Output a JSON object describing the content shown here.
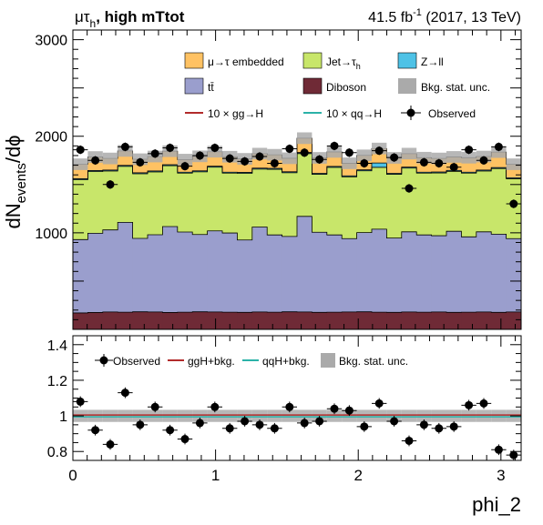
{
  "title": {
    "channel": "μτ",
    "channel_sub": "h",
    "category": ", high mTtot",
    "lumi": "41.5 fb",
    "lumi_exp": "-1",
    "run": " (2017, 13 TeV)"
  },
  "legend": {
    "embedded": "μ→τ embedded",
    "jetfakes": "Jet→τ",
    "jetfakes_sub": "h",
    "zll": "Z→ll",
    "ttbar": "tt̄",
    "diboson": "Diboson",
    "bkg_unc": "Bkg. stat. unc.",
    "sig_gg": "10 × gg→H",
    "sig_qq": "10 × qq→H",
    "observed": "Observed"
  },
  "ratio_legend": {
    "observed": "Observed",
    "ggh": "ggH+bkg.",
    "qqh": "qqH+bkg.",
    "unc": "Bkg. stat. unc."
  },
  "colors": {
    "embedded": "#ffc263",
    "jetfakes": "#c8e66a",
    "zll": "#4ec2e6",
    "ttbar": "#9a9ecd",
    "diboson": "#6f2a36",
    "unc": "#aaaaaa",
    "sig_gg": "#b22b2b",
    "sig_qq": "#2bb2a8"
  },
  "chart_data": [
    {
      "type": "bar",
      "stacked": true,
      "ylabel": "dN",
      "ylabel_sub": "events",
      "ylabel_tail": "/dϕ",
      "xlim": [
        0,
        3.1416
      ],
      "ylim": [
        0,
        3100
      ],
      "y_ticks": [
        1000,
        2000,
        3000
      ],
      "y_tick_labels": [
        "1000",
        "2000",
        "3000"
      ],
      "bins": 30,
      "series": [
        {
          "key": "diboson",
          "name": "Diboson",
          "values": [
            170,
            175,
            180,
            178,
            182,
            180,
            175,
            178,
            182,
            180,
            178,
            176,
            180,
            178,
            182,
            180,
            176,
            178,
            180,
            182,
            178,
            176,
            180,
            178,
            180,
            176,
            178,
            180,
            176,
            180
          ]
        },
        {
          "key": "ttbar",
          "name": "tt̄",
          "values": [
            760,
            820,
            850,
            930,
            760,
            800,
            890,
            830,
            800,
            840,
            820,
            750,
            880,
            800,
            780,
            990,
            830,
            800,
            760,
            820,
            860,
            770,
            830,
            800,
            790,
            840,
            780,
            830,
            810,
            760
          ]
        },
        {
          "key": "jetfakes",
          "name": "Jet→τh",
          "values": [
            620,
            640,
            610,
            580,
            670,
            650,
            630,
            610,
            650,
            660,
            620,
            690,
            600,
            680,
            660,
            650,
            600,
            700,
            640,
            640,
            640,
            660,
            660,
            640,
            650,
            620,
            660,
            630,
            680,
            620
          ]
        },
        {
          "key": "zll",
          "name": "Z→ll",
          "values": [
            10,
            10,
            10,
            10,
            10,
            10,
            10,
            10,
            10,
            10,
            10,
            10,
            10,
            10,
            10,
            10,
            10,
            10,
            10,
            10,
            45,
            10,
            10,
            10,
            10,
            10,
            10,
            10,
            10,
            10
          ]
        },
        {
          "key": "embedded",
          "name": "μ→τ embedded",
          "values": [
            150,
            140,
            120,
            150,
            140,
            150,
            140,
            130,
            150,
            150,
            160,
            140,
            150,
            140,
            140,
            150,
            160,
            150,
            130,
            150,
            150,
            160,
            140,
            150,
            140,
            140,
            150,
            140,
            160,
            140
          ]
        }
      ],
      "unc_half_width": [
        60,
        60,
        60,
        60,
        60,
        60,
        60,
        60,
        60,
        60,
        60,
        60,
        60,
        60,
        60,
        60,
        60,
        60,
        60,
        60,
        60,
        60,
        60,
        60,
        60,
        60,
        60,
        60,
        60,
        60
      ],
      "observed": [
        1860,
        1750,
        1500,
        1890,
        1730,
        1820,
        1880,
        1690,
        1800,
        1880,
        1770,
        1740,
        1790,
        1720,
        1870,
        1830,
        1760,
        1900,
        1830,
        1720,
        1850,
        1780,
        1460,
        1730,
        1720,
        1680,
        1860,
        1750,
        1890,
        1300
      ],
      "observed_err": [
        45,
        45,
        45,
        45,
        45,
        45,
        45,
        45,
        45,
        45,
        45,
        45,
        45,
        45,
        45,
        45,
        45,
        45,
        45,
        45,
        45,
        45,
        45,
        45,
        45,
        45,
        45,
        45,
        45,
        45
      ]
    },
    {
      "type": "scatter",
      "ylabel": "",
      "xlabel": "phi_2",
      "xlim": [
        0,
        3.1416
      ],
      "ylim": [
        0.75,
        1.45
      ],
      "x_ticks": [
        0,
        1,
        2,
        3
      ],
      "x_tick_labels": [
        "0",
        "1",
        "2",
        "3"
      ],
      "y_ticks": [
        0.8,
        1.0,
        1.2,
        1.4
      ],
      "y_tick_labels": [
        "0.8",
        "1",
        "1.2",
        "1.4"
      ],
      "ratio": [
        1.08,
        0.92,
        0.84,
        1.13,
        0.95,
        1.05,
        0.92,
        0.87,
        0.96,
        1.05,
        0.93,
        0.97,
        0.95,
        0.93,
        1.05,
        0.96,
        0.97,
        1.04,
        1.03,
        0.94,
        1.07,
        0.97,
        0.86,
        0.95,
        0.93,
        0.94,
        1.06,
        1.07,
        0.81,
        0.78
      ],
      "ratio_err": [
        0.03,
        0.03,
        0.03,
        0.03,
        0.03,
        0.03,
        0.03,
        0.03,
        0.03,
        0.03,
        0.03,
        0.03,
        0.03,
        0.03,
        0.03,
        0.03,
        0.03,
        0.03,
        0.03,
        0.03,
        0.03,
        0.03,
        0.03,
        0.03,
        0.03,
        0.03,
        0.03,
        0.03,
        0.03,
        0.03
      ],
      "unc_half_width": [
        0.034,
        0.034,
        0.034,
        0.034,
        0.034,
        0.034,
        0.034,
        0.034,
        0.034,
        0.034,
        0.034,
        0.034,
        0.034,
        0.034,
        0.034,
        0.034,
        0.034,
        0.034,
        0.034,
        0.034,
        0.034,
        0.034,
        0.034,
        0.034,
        0.034,
        0.034,
        0.034,
        0.034,
        0.034,
        0.034
      ]
    }
  ]
}
